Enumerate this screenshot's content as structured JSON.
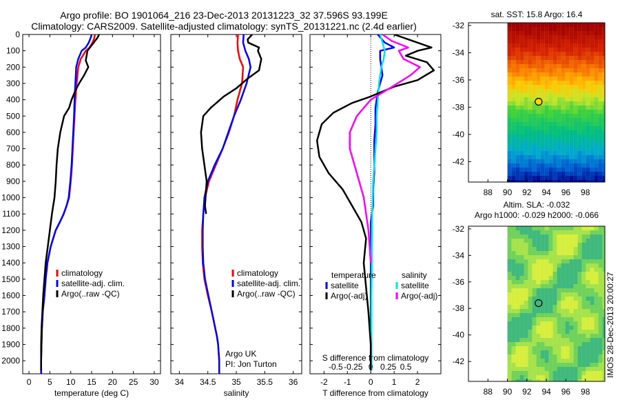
{
  "header": {
    "line1": "Argo profile: BO 1901064_216 23-Dec-2013 20131223_32 37.596S 93.199E",
    "line2": "Climatology: CARS2009. Satellite-adjusted climatology: synTS_20131221.nc (2.4d earlier)"
  },
  "colors": {
    "climatology": "#ff0000",
    "satellite": "#0000ff",
    "argo": "#000000",
    "satellite_salinity": "#00e5ee",
    "argo_salinity_adj": "#ff00ff"
  },
  "chart_data": [
    {
      "type": "line",
      "id": "temperature",
      "xlabel": "temperature (deg C)",
      "ylabel": "",
      "xlim": [
        -1.5,
        31.5
      ],
      "ylim": [
        2080,
        0
      ],
      "xticks": [
        0,
        5,
        10,
        15,
        20,
        25,
        30
      ],
      "yticks": [
        0,
        100,
        200,
        300,
        400,
        500,
        600,
        700,
        800,
        900,
        1000,
        1100,
        1200,
        1300,
        1400,
        1500,
        1600,
        1700,
        1800,
        1900,
        2000
      ],
      "legend": {
        "position": "lower-center",
        "entries": [
          "climatology",
          "satellite-adj. clim.",
          "Argo(..raw -QC)"
        ]
      },
      "series": [
        {
          "name": "climatology",
          "color": "#ff0000",
          "x": [
            15.8,
            15.6,
            15.2,
            14.5,
            13.6,
            12.4,
            11.8,
            11.4,
            11.1,
            10.9,
            10.7,
            10.5,
            10.3,
            10.0,
            9.6,
            9.0,
            8.3,
            7.4,
            6.4,
            5.2,
            4.4,
            4.0,
            3.7,
            3.3,
            3.1,
            3.0,
            2.9,
            2.9
          ],
          "y": [
            0,
            25,
            50,
            80,
            100,
            150,
            200,
            300,
            400,
            500,
            600,
            700,
            800,
            900,
            1000,
            1050,
            1100,
            1150,
            1200,
            1300,
            1400,
            1500,
            1600,
            1700,
            1800,
            1900,
            2000,
            2080
          ]
        },
        {
          "name": "satellite-adj. clim.",
          "color": "#0000ff",
          "x": [
            15.0,
            14.7,
            14.3,
            13.6,
            12.6,
            11.8,
            11.3,
            11.1,
            10.9,
            10.8,
            10.6,
            10.4,
            10.2,
            9.9,
            9.5,
            9.0,
            8.3,
            7.4,
            6.4,
            5.2,
            4.4,
            4.0,
            3.7,
            3.3,
            3.1,
            3.0,
            2.9,
            2.9
          ],
          "y": [
            0,
            25,
            50,
            80,
            100,
            150,
            200,
            300,
            400,
            500,
            600,
            700,
            800,
            900,
            1000,
            1050,
            1100,
            1150,
            1200,
            1300,
            1400,
            1500,
            1600,
            1700,
            1800,
            1900,
            2000,
            2080
          ]
        },
        {
          "name": "Argo(..raw -QC)",
          "color": "#000000",
          "x": [
            16.8,
            16.4,
            15.8,
            15.2,
            14.6,
            14.0,
            13.8,
            13.6,
            14.2,
            13.2,
            12.0,
            11.0,
            10.2,
            9.6,
            8.4,
            7.5,
            6.9,
            6.6,
            6.4,
            6.1,
            5.8,
            5.5,
            5.0,
            4.5,
            4.0,
            3.7,
            3.4,
            3.2,
            3.0,
            2.9,
            2.9
          ],
          "y": [
            0,
            20,
            40,
            60,
            80,
            100,
            130,
            160,
            200,
            250,
            300,
            350,
            400,
            450,
            500,
            600,
            700,
            800,
            900,
            1000,
            1050,
            1100,
            1200,
            1300,
            1400,
            1500,
            1600,
            1700,
            1800,
            1900,
            2060
          ]
        }
      ]
    },
    {
      "type": "line",
      "id": "salinity",
      "xlabel": "salinity",
      "ylabel": "",
      "xlim": [
        33.85,
        36.15
      ],
      "ylim": [
        2080,
        0
      ],
      "xticks": [
        34,
        34.5,
        35,
        35.5,
        36
      ],
      "legend": {
        "position": "lower-center",
        "entries": [
          "climatology",
          "satellite-adj. clim.",
          "Argo(..raw -QC)"
        ]
      },
      "annotation": [
        "Argo UK",
        "PI: Jon Turton"
      ],
      "series": [
        {
          "name": "climatology",
          "color": "#ff0000",
          "x": [
            35.03,
            35.02,
            35.03,
            35.06,
            35.12,
            35.1,
            35.02,
            34.96,
            34.87,
            34.76,
            34.64,
            34.52,
            34.45,
            34.42,
            34.4,
            34.4,
            34.41,
            34.44,
            34.5,
            34.57,
            34.63,
            34.66,
            34.68,
            34.69,
            34.7,
            34.7
          ],
          "y": [
            0,
            50,
            100,
            150,
            200,
            300,
            400,
            500,
            600,
            700,
            800,
            900,
            1000,
            1100,
            1200,
            1300,
            1400,
            1500,
            1600,
            1700,
            1800,
            1850,
            1900,
            1950,
            2000,
            2080
          ]
        },
        {
          "name": "satellite-adj. clim.",
          "color": "#0000ff",
          "x": [
            35.13,
            35.12,
            35.16,
            35.22,
            35.25,
            35.18,
            35.08,
            34.96,
            34.86,
            34.76,
            34.62,
            34.5,
            34.44,
            34.42,
            34.41,
            34.41,
            34.42,
            34.45,
            34.51,
            34.57,
            34.63,
            34.66,
            34.68,
            34.69,
            34.7,
            34.7
          ],
          "y": [
            0,
            50,
            100,
            150,
            200,
            300,
            400,
            500,
            600,
            700,
            800,
            900,
            1000,
            1100,
            1200,
            1300,
            1400,
            1500,
            1600,
            1700,
            1800,
            1850,
            1900,
            1950,
            2000,
            2080
          ]
        },
        {
          "name": "Argo(..raw -QC)",
          "color": "#000000",
          "x": [
            35.28,
            35.2,
            35.21,
            35.4,
            35.38,
            35.44,
            35.4,
            35.2,
            35.0,
            34.78,
            34.55,
            34.42,
            34.38,
            34.4,
            34.44,
            34.48,
            34.46,
            34.45,
            34.47
          ],
          "y": [
            0,
            30,
            50,
            80,
            100,
            150,
            220,
            270,
            330,
            380,
            450,
            500,
            600,
            700,
            800,
            900,
            1000,
            1050,
            1100
          ]
        }
      ]
    },
    {
      "type": "line",
      "id": "difference",
      "xlabel": "T difference from climatology",
      "xlabel_top": "S difference from climatology",
      "xlim": [
        -2.6,
        3.0
      ],
      "ylim": [
        2080,
        0
      ],
      "xticks": [
        -2,
        -1,
        0,
        1,
        2
      ],
      "xticks_S": [
        "-0.5",
        "-0.25",
        "0",
        "0.25",
        "0.5"
      ],
      "legend": {
        "position": "lower-center",
        "headers": [
          "temperature",
          "salinity"
        ],
        "entries": [
          "satellite",
          "Argo(-adj)",
          "satellite",
          "Argo(-adj)"
        ]
      },
      "series": [
        {
          "name": "satellite",
          "group": "temperature",
          "color": "#0000ff",
          "x": [
            0.3,
            0.6,
            1.0,
            0.4,
            0.4,
            0.5,
            0.3,
            0.2,
            0.2,
            0.15,
            0.15,
            0.15,
            0.1,
            0.1,
            0.0,
            0.0,
            0.0,
            0.0,
            0.0,
            0.0,
            0.0,
            0.0,
            0.0,
            0.0
          ],
          "y": [
            0,
            50,
            80,
            100,
            150,
            250,
            350,
            450,
            550,
            650,
            750,
            850,
            950,
            1050,
            1150,
            1250,
            1350,
            1450,
            1550,
            1650,
            1750,
            1850,
            1950,
            2060
          ]
        },
        {
          "name": "satellite",
          "group": "salinity",
          "color": "#00e5ee",
          "x": [
            0.4,
            0.5,
            0.6,
            0.55,
            0.45,
            0.4,
            0.35,
            0.3,
            0.25,
            0.25,
            0.2,
            0.15,
            0.1,
            0.08,
            0.05,
            0.04,
            0.04,
            0.03,
            0.03,
            0.03,
            0.03
          ],
          "y": [
            0,
            50,
            100,
            150,
            200,
            250,
            300,
            400,
            500,
            600,
            700,
            800,
            900,
            1000,
            1150,
            1300,
            1450,
            1600,
            1750,
            1900,
            2060
          ]
        },
        {
          "name": "Argo(-adj)",
          "group": "temperature",
          "color": "#000000",
          "x": [
            1.0,
            1.6,
            2.2,
            2.6,
            2.0,
            1.5,
            2.4,
            2.7,
            2.0,
            1.0,
            0.0,
            -0.8,
            -1.6,
            -2.1,
            -2.3,
            -2.2,
            -1.8,
            -1.2,
            -0.8,
            -0.4,
            -0.2,
            -0.3,
            -0.2,
            -0.1,
            0.0,
            0.0
          ],
          "y": [
            0,
            30,
            60,
            80,
            100,
            130,
            170,
            220,
            280,
            320,
            380,
            420,
            480,
            550,
            650,
            750,
            850,
            950,
            1050,
            1150,
            1250,
            1400,
            1550,
            1700,
            1900,
            2060
          ]
        },
        {
          "name": "Argo(-adj)",
          "group": "salinity",
          "color": "#ff00ff",
          "x": [
            0.5,
            0.9,
            1.6,
            1.2,
            1.4,
            2.1,
            1.7,
            0.8,
            0.0,
            -0.6,
            -0.9,
            -0.9,
            -0.7,
            -0.5,
            -0.3,
            -0.2,
            -0.1,
            -0.05,
            0.0
          ],
          "y": [
            0,
            40,
            80,
            100,
            150,
            200,
            250,
            330,
            400,
            500,
            600,
            700,
            800,
            900,
            1000,
            1100,
            1200,
            1300,
            1400
          ]
        }
      ]
    },
    {
      "type": "heatmap",
      "id": "sst",
      "title": "sat. SST: 15.8 Argo: 16.4",
      "xlim": [
        86,
        100
      ],
      "ylim": [
        -43.5,
        -31.8
      ],
      "xticks": [
        88,
        90,
        92,
        94,
        96,
        98
      ],
      "yticks": [
        -32,
        -34,
        -36,
        -38,
        -40,
        -42
      ],
      "marker": {
        "lon": 93.2,
        "lat": -37.6
      }
    },
    {
      "type": "heatmap",
      "id": "sla",
      "title": "Altim. SLA: -0.032",
      "subtitle": "Argo h1000: -0.029 h2000: -0.066",
      "xlim": [
        86,
        100
      ],
      "ylim": [
        -43.5,
        -31.8
      ],
      "xticks": [
        88,
        90,
        92,
        94,
        96,
        98
      ],
      "yticks": [
        -32,
        -34,
        -36,
        -38,
        -40,
        -42
      ],
      "marker": {
        "lon": 93.2,
        "lat": -37.6
      }
    }
  ],
  "footer_stamp": "IMOS 28-Dec-2013 20:00:27"
}
